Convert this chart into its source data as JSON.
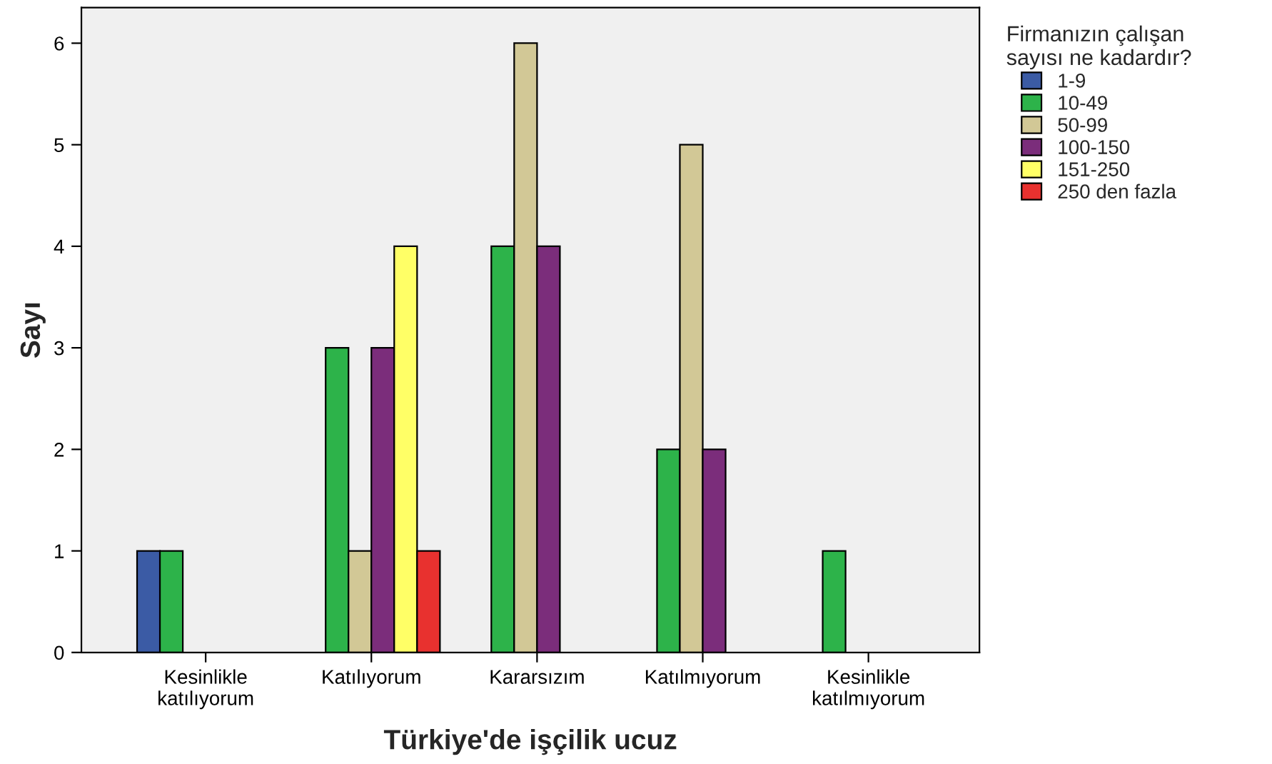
{
  "chart_data": {
    "type": "bar",
    "xlabel": "Türkiye'de işçilik ucuz",
    "ylabel": "Sayı",
    "legend_title": "Firmanızın çalışan\nsayısı ne kadardır?",
    "categories": [
      "Kesinlikle\nkatılıyorum",
      "Katılıyorum",
      "Kararsızım",
      "Katılmıyorum",
      "Kesinlikle\nkatılmıyorum"
    ],
    "series": [
      {
        "name": "1-9",
        "color": "#3b5ba5",
        "values": [
          1,
          null,
          null,
          null,
          null
        ]
      },
      {
        "name": "10-49",
        "color": "#2db34a",
        "values": [
          1,
          3,
          4,
          2,
          1
        ]
      },
      {
        "name": "50-99",
        "color": "#d2c896",
        "values": [
          null,
          1,
          6,
          5,
          null
        ]
      },
      {
        "name": "100-150",
        "color": "#7b2d7b",
        "values": [
          null,
          3,
          4,
          2,
          null
        ]
      },
      {
        "name": "151-250",
        "color": "#ffff66",
        "values": [
          null,
          4,
          null,
          null,
          null
        ]
      },
      {
        "name": "250 den fazla",
        "color": "#e8312f",
        "values": [
          null,
          1,
          null,
          null,
          null
        ]
      }
    ],
    "ylim": [
      0,
      6.35
    ],
    "yticks": [
      0,
      1,
      2,
      3,
      4,
      5,
      6
    ],
    "grid": false,
    "legend": "top right"
  }
}
